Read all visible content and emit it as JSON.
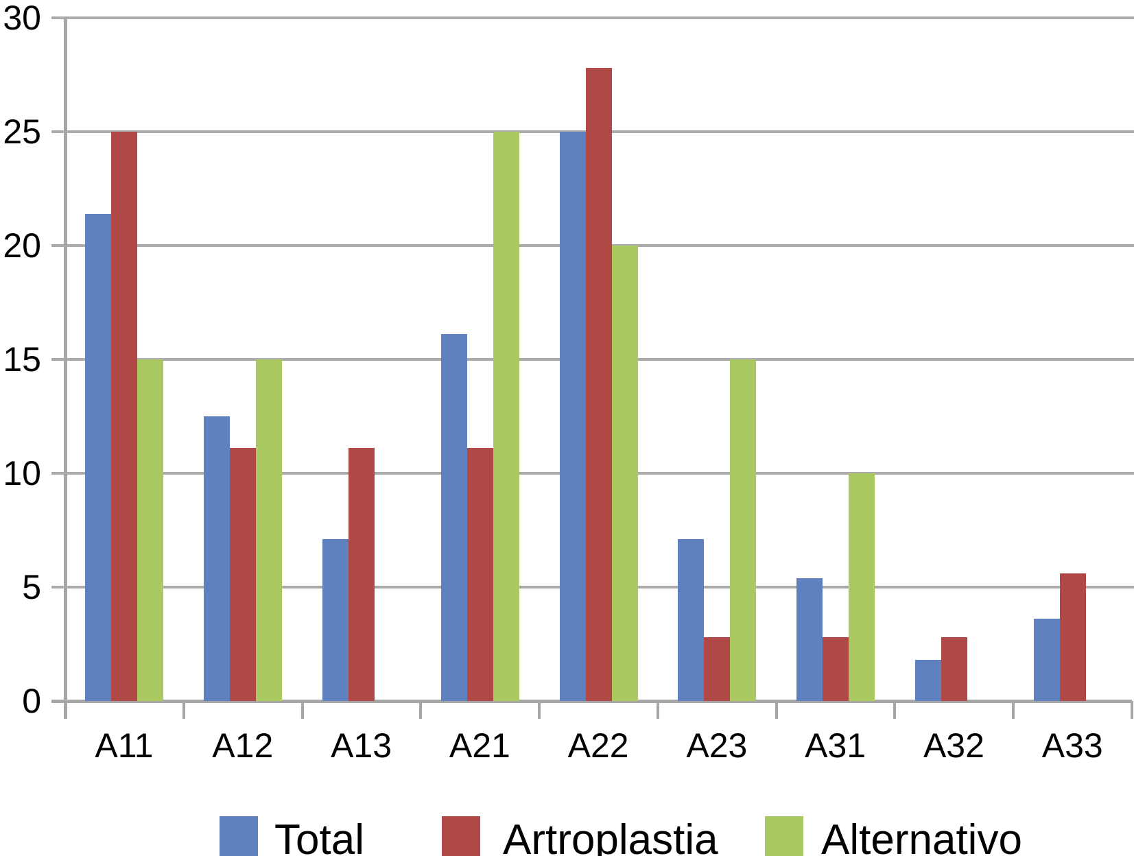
{
  "chart_data": {
    "type": "bar",
    "title": "",
    "xlabel": "",
    "ylabel": "",
    "categories": [
      "A11",
      "A12",
      "A13",
      "A21",
      "A22",
      "A23",
      "A31",
      "A32",
      "A33"
    ],
    "series": [
      {
        "name": "Total",
        "color": "#6081C0",
        "values": [
          21.4,
          12.5,
          7.1,
          16.1,
          25.0,
          7.1,
          5.4,
          1.8,
          3.6
        ]
      },
      {
        "name": "Artroplastia",
        "color": "#B04846",
        "values": [
          25.0,
          11.1,
          11.1,
          11.1,
          27.8,
          2.8,
          2.8,
          2.8,
          5.6
        ]
      },
      {
        "name": "Alternativo",
        "color": "#ABC961",
        "values": [
          15.0,
          15.0,
          0,
          25.0,
          20.0,
          15.0,
          10.0,
          0,
          0
        ]
      }
    ],
    "ylim": [
      0,
      30
    ],
    "yticks": [
      0,
      5,
      10,
      15,
      20,
      25,
      30
    ],
    "grid": "horizontal",
    "legend_position": "bottom"
  },
  "colors": {
    "gridline": "#ABABAB",
    "axis": "#A6A6A6",
    "text": "#000000",
    "background": "#FFFFFF"
  }
}
